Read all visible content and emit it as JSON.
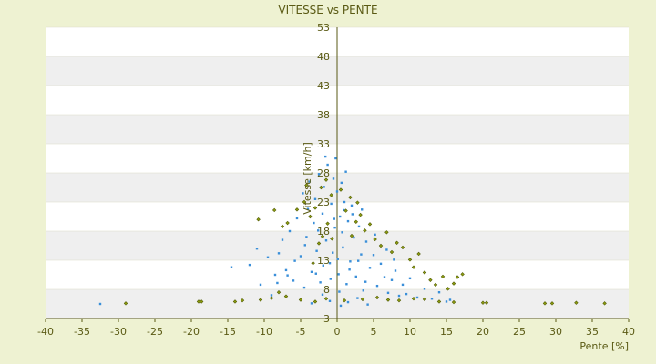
{
  "chart_data": {
    "type": "scatter",
    "title": "VITESSE vs PENTE",
    "xlabel": "Pente [%]",
    "ylabel": "Vitesse [km/h]",
    "xlim": [
      -40,
      40
    ],
    "ylim": [
      3,
      53
    ],
    "xticks": [
      "-40",
      "-35",
      "-30",
      "-25",
      "-20",
      "-15",
      "-10",
      "-5",
      "0",
      "5",
      "10",
      "15",
      "20",
      "25",
      "30",
      "35",
      "40"
    ],
    "yticks": [
      "3",
      "8",
      "13",
      "18",
      "23",
      "28",
      "33",
      "38",
      "43",
      "48",
      "53"
    ],
    "grid": "horizontal bands",
    "colors": {
      "background": "#eef2d2",
      "plot_band_light": "#ffffff",
      "plot_band_dark": "#efefef",
      "axis": "#5a5a14",
      "text": "#5a5a14",
      "series_a": "#3a8fd9",
      "series_b": "#8a9a10"
    },
    "series": [
      {
        "color": "#3a8fd9",
        "points": [
          [
            -32.5,
            5.5
          ],
          [
            -14.5,
            11.8
          ],
          [
            -12,
            12.2
          ],
          [
            -11,
            15
          ],
          [
            -10.5,
            8.8
          ],
          [
            -9.5,
            13.5
          ],
          [
            -9,
            7
          ],
          [
            -8.5,
            10.5
          ],
          [
            -8,
            14.2
          ],
          [
            -7.5,
            16.5
          ],
          [
            -7,
            11.3
          ],
          [
            -6.5,
            18
          ],
          [
            -6,
            9.5
          ],
          [
            -5.5,
            20.2
          ],
          [
            -5,
            13.7
          ],
          [
            -4.7,
            24.5
          ],
          [
            -4.5,
            8.3
          ],
          [
            -4.2,
            17
          ],
          [
            -4,
            21.8
          ],
          [
            -3.8,
            26.5
          ],
          [
            -3.5,
            11
          ],
          [
            -3.2,
            19.4
          ],
          [
            -3,
            23.5
          ],
          [
            -2.8,
            14.6
          ],
          [
            -2.5,
            27.8
          ],
          [
            -2.3,
            9.2
          ],
          [
            -2,
            21
          ],
          [
            -1.8,
            25.6
          ],
          [
            -1.5,
            16.4
          ],
          [
            -1.3,
            29.4
          ],
          [
            -1,
            12.5
          ],
          [
            -0.8,
            22.7
          ],
          [
            -0.5,
            27
          ],
          [
            -0.3,
            18.6
          ],
          [
            0,
            24.8
          ],
          [
            0.2,
            10.6
          ],
          [
            0.4,
            20.5
          ],
          [
            0.6,
            26.3
          ],
          [
            0.8,
            15.2
          ],
          [
            1,
            23
          ],
          [
            1.3,
            8.9
          ],
          [
            1.5,
            19.7
          ],
          [
            1.8,
            12.8
          ],
          [
            2,
            22.4
          ],
          [
            2.3,
            16.9
          ],
          [
            2.6,
            10.2
          ],
          [
            3,
            18.8
          ],
          [
            3.3,
            14
          ],
          [
            3.6,
            7.8
          ],
          [
            4,
            16.2
          ],
          [
            4.5,
            11.7
          ],
          [
            5,
            13.9
          ],
          [
            5.5,
            8.6
          ],
          [
            6,
            12.4
          ],
          [
            6.5,
            10.1
          ],
          [
            7,
            7.4
          ],
          [
            7.5,
            9.6
          ],
          [
            8,
            11.2
          ],
          [
            8.5,
            6.9
          ],
          [
            9,
            8.8
          ],
          [
            9.5,
            7.2
          ],
          [
            10,
            9.9
          ],
          [
            11,
            6.6
          ],
          [
            12,
            8.1
          ],
          [
            13,
            6.4
          ],
          [
            14,
            7.5
          ],
          [
            15,
            5.9
          ],
          [
            15.5,
            6.2
          ],
          [
            0.5,
            5.2
          ],
          [
            -1,
            6
          ],
          [
            1.5,
            5.8
          ],
          [
            -2,
            7.1
          ],
          [
            2.8,
            6.5
          ],
          [
            -3.5,
            5.6
          ],
          [
            4.2,
            5.4
          ],
          [
            -0.2,
            30.5
          ],
          [
            1.2,
            28.2
          ],
          [
            -1.6,
            30.8
          ],
          [
            0.7,
            17.8
          ],
          [
            -0.6,
            14.3
          ],
          [
            2.1,
            20.9
          ],
          [
            -2.6,
            18.1
          ],
          [
            3.4,
            21.7
          ],
          [
            -4.4,
            15.6
          ],
          [
            5.2,
            17.4
          ],
          [
            -5.8,
            12.9
          ],
          [
            6.8,
            14.8
          ],
          [
            -6.8,
            10.4
          ],
          [
            7.8,
            13.1
          ],
          [
            -8.2,
            9.1
          ],
          [
            3.9,
            9.3
          ],
          [
            -0.9,
            9.8
          ],
          [
            0.1,
            13.2
          ],
          [
            1.7,
            11.4
          ],
          [
            -1.9,
            12.1
          ],
          [
            2.9,
            12.9
          ],
          [
            -2.9,
            10.7
          ],
          [
            0.3,
            7.6
          ],
          [
            -0.4,
            20.1
          ],
          [
            0.9,
            21.6
          ]
        ]
      },
      {
        "color": "#8a9a10",
        "points": [
          [
            -29,
            5.6
          ],
          [
            -19,
            5.9
          ],
          [
            -18.6,
            5.9
          ],
          [
            -14,
            5.9
          ],
          [
            -13,
            6.1
          ],
          [
            -10.5,
            6.2
          ],
          [
            -9,
            6.5
          ],
          [
            -8,
            7.5
          ],
          [
            -7,
            6.8
          ],
          [
            -10.8,
            20
          ],
          [
            -8.6,
            21.6
          ],
          [
            -7.5,
            18.8
          ],
          [
            -6.8,
            19.4
          ],
          [
            -5.5,
            21.7
          ],
          [
            -4.5,
            23
          ],
          [
            -3.7,
            20.5
          ],
          [
            -3,
            22
          ],
          [
            -2.5,
            15.9
          ],
          [
            -2,
            17.1
          ],
          [
            -1.3,
            19.3
          ],
          [
            -0.7,
            16.7
          ],
          [
            1.2,
            21.5
          ],
          [
            2,
            17.2
          ],
          [
            2.6,
            19.6
          ],
          [
            3.2,
            20.8
          ],
          [
            3.8,
            18.1
          ],
          [
            4.5,
            19.2
          ],
          [
            5.2,
            16.6
          ],
          [
            6,
            15.5
          ],
          [
            6.8,
            17.8
          ],
          [
            7.5,
            14.4
          ],
          [
            8.2,
            16
          ],
          [
            9,
            15.2
          ],
          [
            10,
            13.1
          ],
          [
            10.5,
            11.8
          ],
          [
            11.2,
            14.1
          ],
          [
            12,
            10.9
          ],
          [
            12.8,
            9.6
          ],
          [
            13.5,
            8.8
          ],
          [
            14.5,
            10.2
          ],
          [
            15.2,
            8.1
          ],
          [
            16,
            9
          ],
          [
            16.5,
            10.1
          ],
          [
            17.2,
            10.6
          ],
          [
            16,
            5.8
          ],
          [
            20,
            5.7
          ],
          [
            20.5,
            5.7
          ],
          [
            28.5,
            5.6
          ],
          [
            29.5,
            5.6
          ],
          [
            32.8,
            5.7
          ],
          [
            36.7,
            5.6
          ],
          [
            -5,
            6.2
          ],
          [
            -3,
            5.9
          ],
          [
            -1.5,
            6.4
          ],
          [
            1,
            6.1
          ],
          [
            3.5,
            6.3
          ],
          [
            5.5,
            6.6
          ],
          [
            7,
            6.2
          ],
          [
            8.5,
            6.1
          ],
          [
            10.5,
            6.4
          ],
          [
            12,
            6.3
          ],
          [
            14,
            5.9
          ],
          [
            -2.2,
            25.5
          ],
          [
            -1.5,
            26.8
          ],
          [
            -0.8,
            24.2
          ],
          [
            0.5,
            25.1
          ],
          [
            1.8,
            23.8
          ],
          [
            2.8,
            22.9
          ],
          [
            -4.2,
            25.9
          ],
          [
            -3.3,
            12.5
          ]
        ]
      }
    ]
  }
}
